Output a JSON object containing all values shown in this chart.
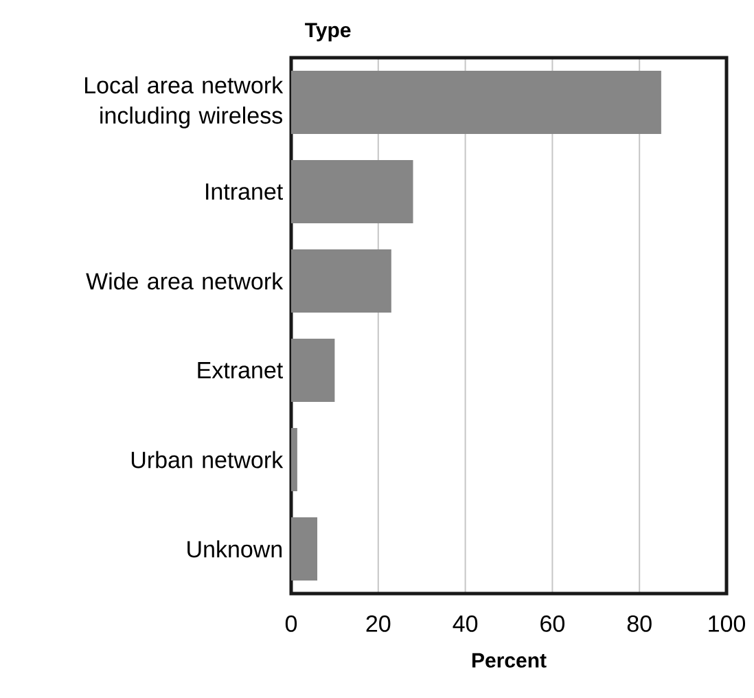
{
  "chart_data": {
    "type": "bar",
    "orientation": "horizontal",
    "ylabel": "Type",
    "xlabel": "Percent",
    "categories": [
      "Local area network including wireless",
      "Intranet",
      "Wide area network",
      "Extranet",
      "Urban network",
      "Unknown"
    ],
    "values": [
      85,
      28,
      23,
      10,
      1.4,
      6
    ],
    "color": "#868686",
    "xlim": [
      0,
      100
    ],
    "xticks": [
      0,
      20,
      40,
      60,
      80,
      100
    ],
    "grid": "x"
  }
}
